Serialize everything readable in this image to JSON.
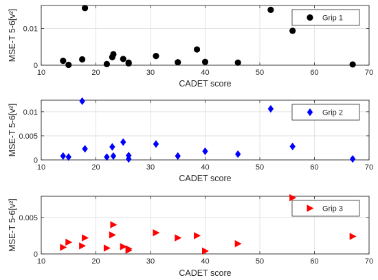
{
  "chart_data": [
    {
      "type": "scatter",
      "xlabel": "CADET score",
      "ylabel": "MSE-T 5-6[v²]",
      "xlim": [
        10,
        70
      ],
      "ylim": [
        0,
        0.0163
      ],
      "xticks": [
        10,
        20,
        30,
        40,
        50,
        60,
        70
      ],
      "yticks": [
        0,
        0.01
      ],
      "ytick_labels": [
        "0",
        "0.01"
      ],
      "grid": true,
      "legend_position": "top-right",
      "series": [
        {
          "name": "Grip 1",
          "marker": "circle",
          "color": "#000000",
          "x": [
            14,
            15,
            17.5,
            18,
            22,
            23,
            23.2,
            25,
            26,
            26,
            31,
            35,
            38.5,
            40,
            46,
            52,
            56,
            67
          ],
          "y": [
            0.0012,
            0.0001,
            0.0016,
            0.0156,
            0.0003,
            0.0022,
            0.003,
            0.0017,
            0.0007,
            0.0005,
            0.0025,
            0.0008,
            0.0043,
            0.0009,
            0.0007,
            0.0151,
            0.0094,
            0.0002
          ]
        }
      ]
    },
    {
      "type": "scatter",
      "xlabel": "CADET score",
      "ylabel": "MSE-T 5-6[v²]",
      "xlim": [
        10,
        70
      ],
      "ylim": [
        0,
        0.0124
      ],
      "xticks": [
        10,
        20,
        30,
        40,
        50,
        60,
        70
      ],
      "yticks": [
        0,
        0.005,
        0.01
      ],
      "ytick_labels": [
        "0",
        "0.005",
        "0.01"
      ],
      "grid": true,
      "legend_position": "top-right",
      "series": [
        {
          "name": "Grip 2",
          "marker": "diamond",
          "color": "#0000ff",
          "x": [
            14,
            15,
            17.5,
            18,
            22,
            23,
            23.2,
            25,
            26,
            26,
            31,
            35,
            40,
            46,
            52,
            56,
            67
          ],
          "y": [
            0.0008,
            0.0006,
            0.0122,
            0.0023,
            0.0006,
            0.0027,
            0.0008,
            0.0037,
            0.0009,
            0.0002,
            0.0033,
            0.0008,
            0.0018,
            0.0012,
            0.0106,
            0.0028,
            0.0002
          ]
        }
      ]
    },
    {
      "type": "scatter",
      "xlabel": "CADET score",
      "ylabel": "MSE-T 5-6[v²]",
      "xlim": [
        10,
        70
      ],
      "ylim": [
        0,
        0.0079
      ],
      "xticks": [
        10,
        20,
        30,
        40,
        50,
        60,
        70
      ],
      "yticks": [
        0,
        0.005
      ],
      "ytick_labels": [
        "0",
        "0.005"
      ],
      "grid": true,
      "legend_position": "top-right",
      "series": [
        {
          "name": "Grip 3",
          "marker": "triangle-right",
          "color": "#ff0000",
          "x": [
            14,
            15,
            17.5,
            18,
            22,
            23,
            23.2,
            25,
            26,
            26,
            31,
            35,
            38.5,
            40,
            46,
            56,
            67
          ],
          "y": [
            0.0009,
            0.0016,
            0.0011,
            0.0022,
            0.0008,
            0.0026,
            0.004,
            0.001,
            0.0007,
            0.0005,
            0.0029,
            0.0022,
            0.0025,
            0.0004,
            0.0014,
            0.0077,
            0.0024
          ]
        }
      ]
    }
  ]
}
